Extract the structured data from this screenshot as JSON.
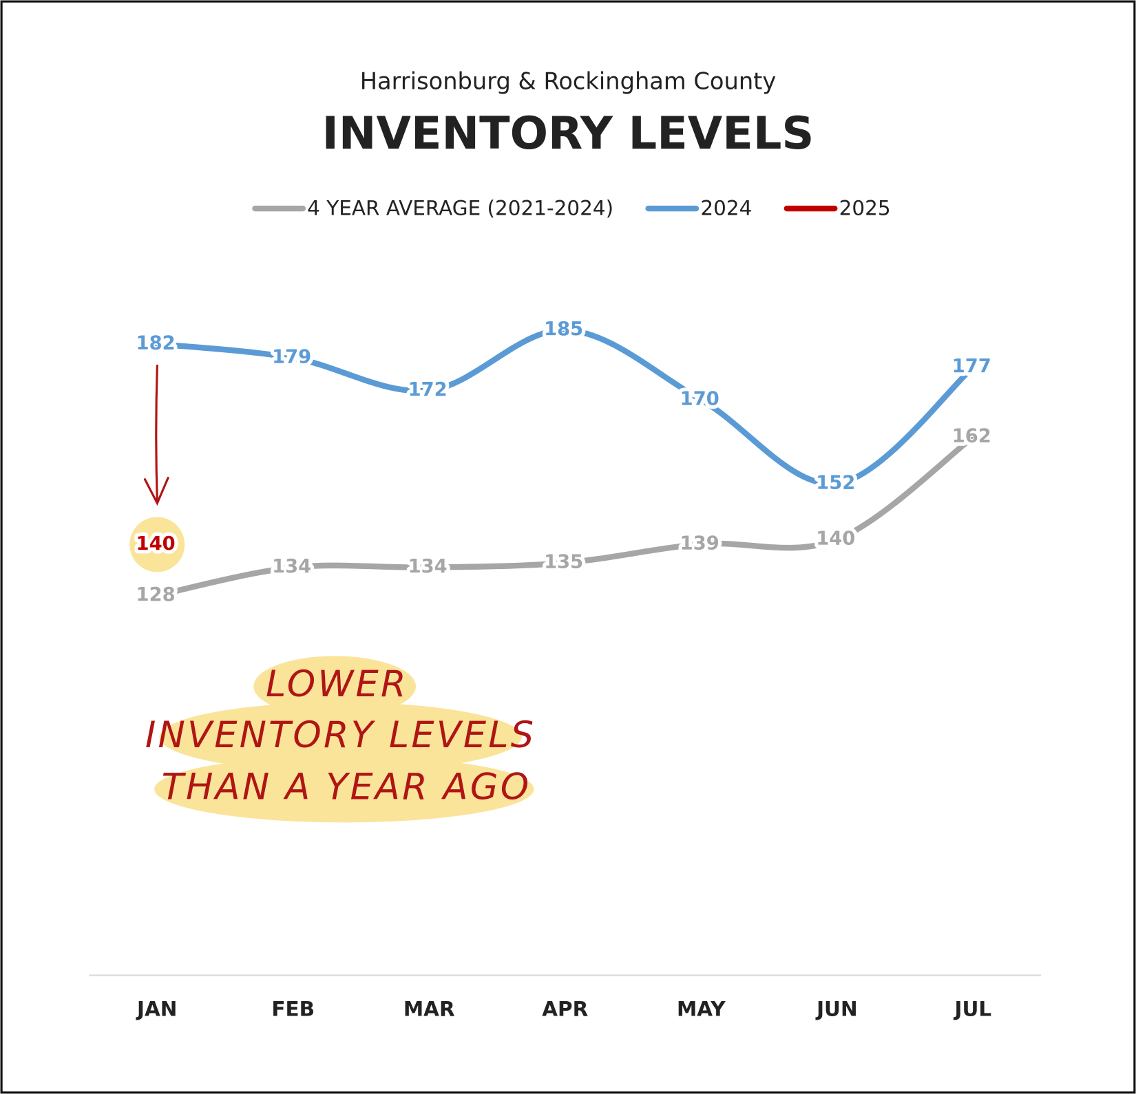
{
  "chart_data": {
    "type": "line",
    "subtitle": "Harrisonburg & Rockingham County",
    "title": "INVENTORY LEVELS",
    "categories": [
      "JAN",
      "FEB",
      "MAR",
      "APR",
      "MAY",
      "JUN",
      "JUL"
    ],
    "series": [
      {
        "name": "4 YEAR AVERAGE (2021-2024)",
        "color": "#a6a6a6",
        "values": [
          128,
          134,
          134,
          135,
          139,
          140,
          162
        ]
      },
      {
        "name": "2024",
        "color": "#5b9bd5",
        "values": [
          182,
          179,
          172,
          185,
          170,
          152,
          177
        ]
      },
      {
        "name": "2025",
        "color": "#c00000",
        "values": [
          140,
          null,
          null,
          null,
          null,
          null,
          null
        ]
      }
    ],
    "ylim": [
      100,
      200
    ],
    "annotation": [
      "LOWER",
      "INVENTORY LEVELS",
      "THAN A YEAR AGO"
    ]
  }
}
